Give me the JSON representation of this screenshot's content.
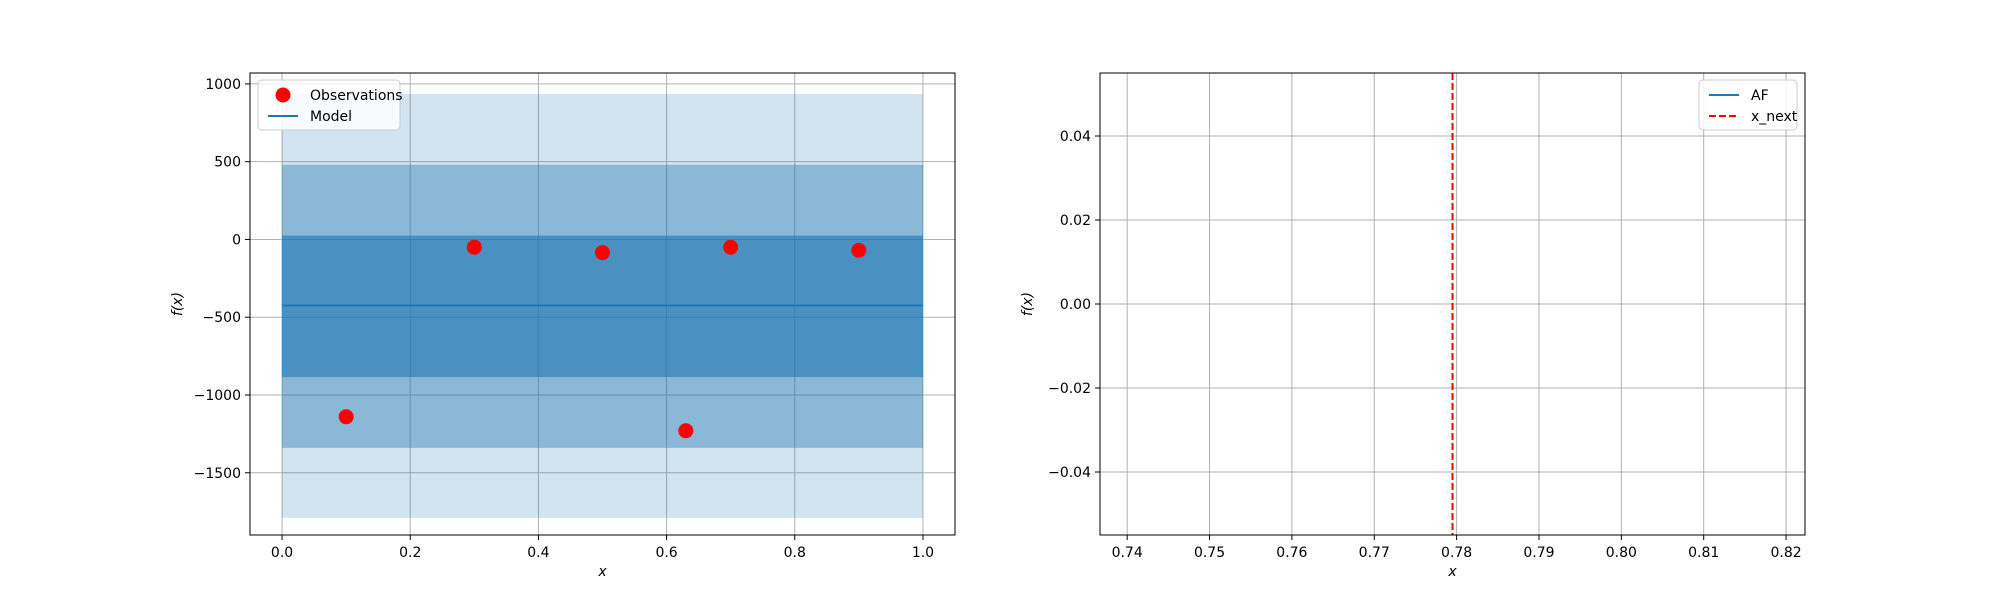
{
  "chart_data": [
    {
      "type": "line",
      "name": "gp-model",
      "xlabel": "x",
      "ylabel": "f(x)",
      "xlim": [
        -0.05,
        1.05
      ],
      "ylim": [
        -1900,
        1070
      ],
      "xticks": [
        0.0,
        0.2,
        0.4,
        0.6,
        0.8,
        1.0
      ],
      "xtick_labels": [
        "0.0",
        "0.2",
        "0.4",
        "0.6",
        "0.8",
        "1.0"
      ],
      "yticks": [
        1000,
        500,
        0,
        -500,
        -1000,
        -1500
      ],
      "ytick_labels": [
        "1000",
        "500",
        "0",
        "−500",
        "−1000",
        "−1500"
      ],
      "grid": true,
      "legend": {
        "position": "top-left",
        "entries": [
          {
            "label": "Observations",
            "marker": "circle",
            "color": "#ff0000"
          },
          {
            "label": "Model",
            "marker": "line",
            "color": "#1f77b4"
          }
        ]
      },
      "bands": [
        {
          "name": "outer",
          "x": [
            0.0,
            1.0
          ],
          "lower": -1790,
          "upper": 935,
          "color": "#1f77b4",
          "opacity": 0.2
        },
        {
          "name": "middle",
          "x": [
            0.0,
            1.0
          ],
          "lower": -1340,
          "upper": 480,
          "color": "#1f77b4",
          "opacity": 0.4
        },
        {
          "name": "inner",
          "x": [
            0.0,
            1.0
          ],
          "lower": -885,
          "upper": 25,
          "color": "#1f77b4",
          "opacity": 0.6
        }
      ],
      "series": [
        {
          "name": "Observations",
          "kind": "scatter",
          "color": "#ff0000",
          "x": [
            0.1,
            0.3,
            0.5,
            0.63,
            0.7,
            0.9
          ],
          "y": [
            -1140,
            -50,
            -85,
            -1230,
            -50,
            -70
          ]
        },
        {
          "name": "Model",
          "kind": "line",
          "color": "#1f77b4",
          "x": [
            0.0,
            1.0
          ],
          "y": [
            -425,
            -425
          ]
        }
      ]
    },
    {
      "type": "line",
      "name": "acquisition-function",
      "xlabel": "x",
      "ylabel": "f(x)",
      "xlim": [
        0.7367,
        0.8223
      ],
      "ylim": [
        -0.055,
        0.055
      ],
      "xticks": [
        0.74,
        0.75,
        0.76,
        0.77,
        0.78,
        0.79,
        0.8,
        0.81,
        0.82
      ],
      "xtick_labels": [
        "0.74",
        "0.75",
        "0.76",
        "0.77",
        "0.78",
        "0.79",
        "0.80",
        "0.81",
        "0.82"
      ],
      "yticks": [
        0.04,
        0.02,
        0.0,
        -0.02,
        -0.04
      ],
      "ytick_labels": [
        "0.04",
        "0.02",
        "0.00",
        "−0.02",
        "−0.04"
      ],
      "grid": true,
      "legend": {
        "position": "top-right",
        "entries": [
          {
            "label": "AF",
            "marker": "line",
            "color": "#1f77b4"
          },
          {
            "label": "x_next",
            "marker": "dashed-line",
            "color": "#ff0000"
          }
        ]
      },
      "series": [
        {
          "name": "AF",
          "kind": "line",
          "color": "#1f77b4",
          "x": [],
          "y": []
        }
      ],
      "vlines": [
        {
          "name": "x_next",
          "x": 0.7795,
          "color": "#ff0000",
          "style": "dashed"
        }
      ]
    }
  ]
}
